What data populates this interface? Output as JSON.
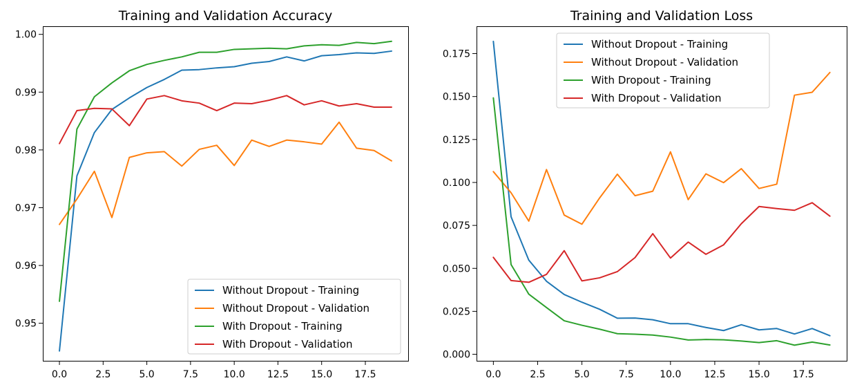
{
  "chart_data": [
    {
      "type": "line",
      "title": "Training and Validation Accuracy",
      "xlabel": "",
      "ylabel": "",
      "xlim": [
        -0.95,
        19.95
      ],
      "ylim": [
        0.9435,
        1.0014
      ],
      "xticks": [
        0.0,
        2.5,
        5.0,
        7.5,
        10.0,
        12.5,
        15.0,
        17.5
      ],
      "xtick_labels": [
        "0.0",
        "2.5",
        "5.0",
        "7.5",
        "10.0",
        "12.5",
        "15.0",
        "17.5"
      ],
      "yticks": [
        0.95,
        0.96,
        0.97,
        0.98,
        0.99,
        1.0
      ],
      "ytick_labels": [
        "0.95",
        "0.96",
        "0.97",
        "0.98",
        "0.99",
        "1.00"
      ],
      "grid": false,
      "legend_position": "lower-right",
      "x": [
        0,
        1,
        2,
        3,
        4,
        5,
        6,
        7,
        8,
        9,
        10,
        11,
        12,
        13,
        14,
        15,
        16,
        17,
        18,
        19
      ],
      "series": [
        {
          "name": "Without Dropout - Training",
          "color": "#1f77b4",
          "values": [
            0.9452,
            0.9755,
            0.983,
            0.987,
            0.989,
            0.9908,
            0.9922,
            0.9938,
            0.9939,
            0.9942,
            0.9944,
            0.995,
            0.9953,
            0.9961,
            0.9954,
            0.9963,
            0.9965,
            0.9968,
            0.9967,
            0.9971
          ]
        },
        {
          "name": "Without Dropout - Validation",
          "color": "#ff7f0e",
          "values": [
            0.9671,
            0.9715,
            0.9763,
            0.9683,
            0.9787,
            0.9795,
            0.9797,
            0.9772,
            0.9801,
            0.9808,
            0.9773,
            0.9817,
            0.9806,
            0.9817,
            0.9814,
            0.981,
            0.9848,
            0.9803,
            0.9799,
            0.9781
          ]
        },
        {
          "name": "With Dropout - Training",
          "color": "#2ca02c",
          "values": [
            0.9538,
            0.9836,
            0.9892,
            0.9916,
            0.9937,
            0.9948,
            0.9955,
            0.9961,
            0.9969,
            0.9969,
            0.9974,
            0.9975,
            0.9976,
            0.9975,
            0.998,
            0.9982,
            0.9981,
            0.9986,
            0.9984,
            0.9988
          ]
        },
        {
          "name": "With Dropout - Validation",
          "color": "#d62728",
          "values": [
            0.9811,
            0.9868,
            0.9872,
            0.9871,
            0.9842,
            0.9888,
            0.9894,
            0.9885,
            0.9881,
            0.9868,
            0.9881,
            0.988,
            0.9886,
            0.9894,
            0.9878,
            0.9885,
            0.9876,
            0.988,
            0.9874,
            0.9874
          ]
        }
      ]
    },
    {
      "type": "line",
      "title": "Training and Validation Loss",
      "xlabel": "",
      "ylabel": "",
      "xlim": [
        -0.95,
        19.95
      ],
      "ylim": [
        -0.0038,
        0.1909
      ],
      "xticks": [
        0.0,
        2.5,
        5.0,
        7.5,
        10.0,
        12.5,
        15.0,
        17.5
      ],
      "xtick_labels": [
        "0.0",
        "2.5",
        "5.0",
        "7.5",
        "10.0",
        "12.5",
        "15.0",
        "17.5"
      ],
      "yticks": [
        0.0,
        0.025,
        0.05,
        0.075,
        0.1,
        0.125,
        0.15,
        0.175
      ],
      "ytick_labels": [
        "0.000",
        "0.025",
        "0.050",
        "0.075",
        "0.100",
        "0.125",
        "0.150",
        "0.175"
      ],
      "grid": false,
      "legend_position": "upper-center",
      "x": [
        0,
        1,
        2,
        3,
        4,
        5,
        6,
        7,
        8,
        9,
        10,
        11,
        12,
        13,
        14,
        15,
        16,
        17,
        18,
        19
      ],
      "series": [
        {
          "name": "Without Dropout - Training",
          "color": "#1f77b4",
          "values": [
            0.1821,
            0.08,
            0.0548,
            0.0425,
            0.0348,
            0.0303,
            0.0262,
            0.021,
            0.0211,
            0.0201,
            0.0178,
            0.0178,
            0.0156,
            0.0138,
            0.0172,
            0.0142,
            0.015,
            0.0118,
            0.015,
            0.0108
          ]
        },
        {
          "name": "Without Dropout - Validation",
          "color": "#ff7f0e",
          "values": [
            0.1063,
            0.094,
            0.0775,
            0.1075,
            0.081,
            0.0757,
            0.091,
            0.1048,
            0.0923,
            0.0949,
            0.1178,
            0.09,
            0.105,
            0.0999,
            0.108,
            0.0965,
            0.099,
            0.1508,
            0.1525,
            0.164
          ]
        },
        {
          "name": "With Dropout - Training",
          "color": "#2ca02c",
          "values": [
            0.1492,
            0.0522,
            0.035,
            0.0272,
            0.0195,
            0.0169,
            0.0146,
            0.012,
            0.0117,
            0.0112,
            0.01,
            0.0083,
            0.0086,
            0.0084,
            0.0077,
            0.0068,
            0.0079,
            0.0053,
            0.0071,
            0.0054
          ]
        },
        {
          "name": "With Dropout - Validation",
          "color": "#d62728",
          "values": [
            0.0564,
            0.0429,
            0.0419,
            0.0465,
            0.0603,
            0.0427,
            0.0445,
            0.0481,
            0.0563,
            0.0702,
            0.056,
            0.0653,
            0.0582,
            0.0637,
            0.076,
            0.086,
            0.0848,
            0.0838,
            0.0882,
            0.0804
          ]
        }
      ]
    }
  ]
}
